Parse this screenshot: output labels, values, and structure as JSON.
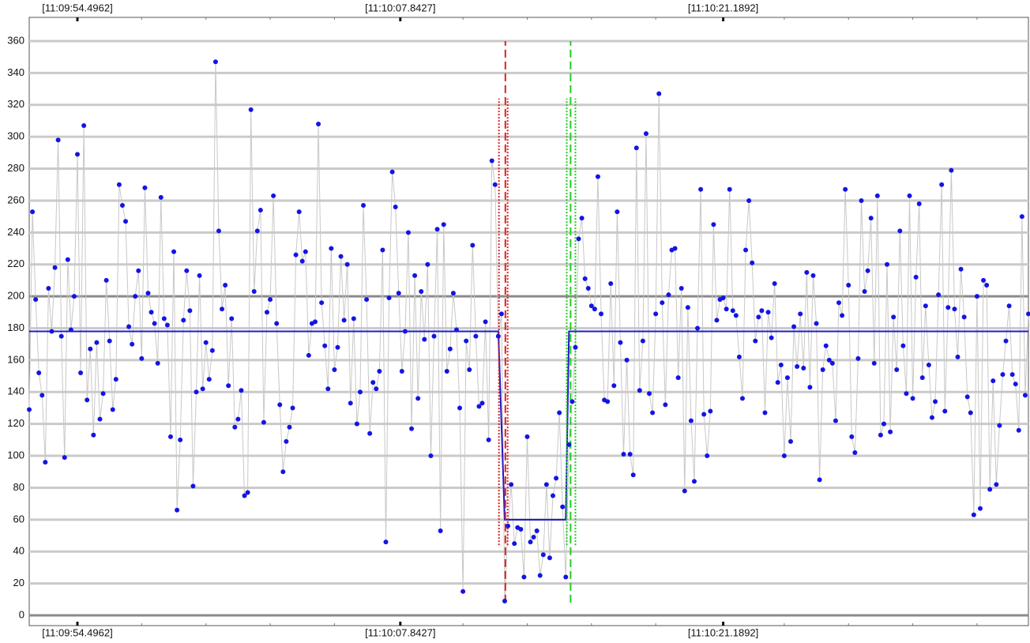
{
  "chart_data": {
    "type": "scatter-line",
    "xlim": [
      0,
      311
    ],
    "ylim": [
      0,
      360
    ],
    "yticks": [
      0,
      20,
      40,
      60,
      80,
      100,
      120,
      140,
      160,
      180,
      200,
      220,
      240,
      260,
      280,
      300,
      320,
      340,
      360
    ],
    "strong_gridlines": [
      0,
      200
    ],
    "xticks": [
      {
        "value": 15,
        "label": "[11:09:54.4962]"
      },
      {
        "value": 115.5,
        "label": "[11:10:07.8427]"
      },
      {
        "value": 216,
        "label": "[11:10:21.1892]"
      }
    ],
    "xminorticks": [
      35,
      55,
      75,
      95,
      135,
      155,
      175,
      195,
      235,
      255,
      275,
      295
    ],
    "grid": true,
    "point_color": "#1414e6",
    "line_color": "#c8c8c8",
    "values": [
      129,
      253,
      198,
      152,
      138,
      96,
      205,
      178,
      218,
      298,
      175,
      99,
      223,
      179,
      200,
      289,
      152,
      307,
      135,
      167,
      113,
      171,
      123,
      139,
      210,
      172,
      129,
      148,
      270,
      257,
      247,
      181,
      170,
      200,
      216,
      161,
      268,
      202,
      190,
      183,
      158,
      262,
      186,
      182,
      112,
      228,
      66,
      110,
      185,
      216,
      191,
      81,
      140,
      213,
      142,
      171,
      148,
      166,
      347,
      241,
      192,
      207,
      144,
      186,
      118,
      123,
      141,
      75,
      77,
      317,
      203,
      241,
      254,
      121,
      190,
      198,
      263,
      183,
      132,
      90,
      109,
      118,
      130,
      226,
      253,
      222,
      228,
      163,
      183,
      184,
      308,
      196,
      169,
      142,
      230,
      154,
      168,
      225,
      185,
      220,
      133,
      186,
      120,
      140,
      257,
      198,
      114,
      146,
      142,
      153,
      229,
      46,
      199,
      278,
      256,
      202,
      153,
      178,
      240,
      117,
      213,
      136,
      203,
      173,
      220,
      100,
      175,
      242,
      53,
      245,
      153,
      167,
      202,
      179,
      130,
      15,
      172,
      154,
      232,
      175,
      131,
      133,
      184,
      110,
      285,
      270,
      175,
      189,
      9,
      56,
      82,
      45,
      55,
      54,
      24,
      112,
      46,
      49,
      53,
      25,
      38,
      82,
      36,
      75,
      86,
      127,
      68,
      24,
      107,
      134,
      168,
      236,
      249,
      211,
      205,
      194,
      192,
      275,
      189,
      135,
      134,
      208,
      144,
      253,
      171,
      101,
      160,
      101,
      88,
      293,
      141,
      172,
      302,
      139,
      127,
      189,
      327,
      196,
      132,
      201,
      229,
      230,
      149,
      205,
      78,
      193,
      122,
      84,
      180,
      267,
      126,
      100,
      128,
      245,
      185,
      198,
      199,
      192,
      267,
      191,
      188,
      162,
      136,
      229,
      260,
      221,
      172,
      187,
      191,
      127,
      190,
      174,
      208,
      146,
      157,
      100,
      149,
      109,
      181,
      156,
      189,
      155,
      215,
      143,
      213,
      183,
      85,
      154,
      169,
      160,
      158,
      122,
      196,
      188,
      267,
      207,
      112,
      102,
      161,
      260,
      203,
      216,
      249,
      158,
      263,
      113,
      120,
      220,
      115,
      187,
      154,
      241,
      169,
      139,
      263,
      136,
      212,
      258,
      149,
      194,
      157,
      124,
      134,
      201,
      270,
      128,
      193,
      279,
      192,
      162,
      217,
      187,
      137,
      127,
      63,
      200,
      67,
      210,
      207,
      79,
      147,
      82,
      119,
      151,
      172,
      194,
      151,
      145,
      116,
      250,
      138,
      189
    ],
    "mean": {
      "color": "#1c1cc4",
      "x": [
        0,
        146,
        148,
        167,
        168,
        311
      ],
      "values": [
        178,
        178,
        60,
        60,
        178,
        178
      ]
    },
    "markers": [
      {
        "x": 148.2,
        "color": "#e02020",
        "ymin": 8,
        "ymax": 360,
        "band": [
          146.2,
          148.9
        ],
        "band_ymin": 44,
        "band_ymax": 324
      },
      {
        "x": 168.5,
        "color": "#22cc22",
        "ymin": 8,
        "ymax": 360,
        "band": [
          167.3,
          170
        ],
        "band_ymin": 44,
        "band_ymax": 324
      }
    ]
  }
}
